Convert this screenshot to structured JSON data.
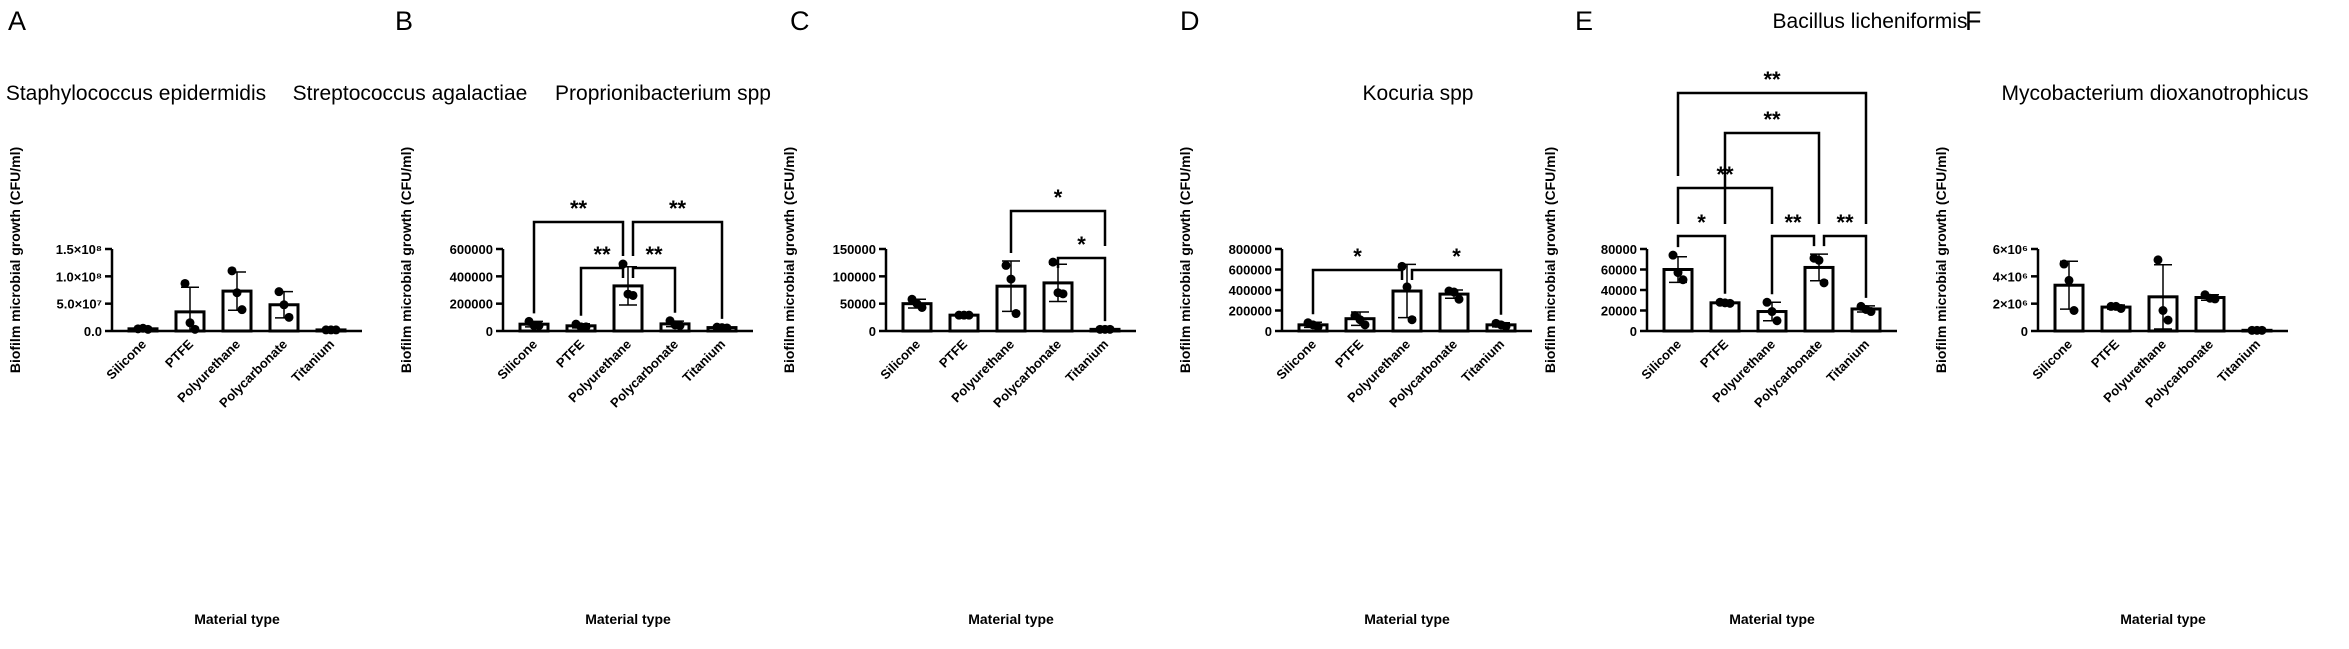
{
  "figure": {
    "colors": {
      "bar_fill": "#ffffff",
      "ink": "#000000"
    }
  },
  "chart_data": [
    {
      "panel": "A",
      "type": "bar",
      "title": "Staphylococcus epidermidis",
      "xlabel": "Material type",
      "ylabel": "Biofilm microbial growth (CFU/ml)",
      "categories": [
        "Silicone",
        "PTFE",
        "Polyurethane",
        "Polycarbonate",
        "Titanium"
      ],
      "ylim": [
        0,
        150000000
      ],
      "yticks": [
        0,
        50000000,
        100000000,
        150000000
      ],
      "ytick_labels": [
        "0.0",
        "5.0×10⁷",
        "1.0×10⁸",
        "1.5×10⁸"
      ],
      "values": [
        4000000,
        35000000,
        73000000,
        48000000,
        2000000
      ],
      "sd": [
        1000000,
        45000000,
        35000000,
        24000000,
        500000
      ],
      "points": [
        [
          4000000,
          5000000,
          3000000
        ],
        [
          87000000,
          15000000,
          3000000
        ],
        [
          110000000,
          70000000,
          39000000
        ],
        [
          72000000,
          48000000,
          25000000
        ],
        [
          2000000,
          2000000,
          2000000
        ]
      ],
      "comparisons": []
    },
    {
      "panel": "B",
      "type": "bar",
      "title": "Streptococcus agalactiae",
      "xlabel": "Material type",
      "ylabel": "Biofilm microbial growth (CFU/ml)",
      "categories": [
        "Silicone",
        "PTFE",
        "Polyurethane",
        "Polycarbonate",
        "Titanium"
      ],
      "ylim": [
        0,
        600000
      ],
      "yticks": [
        0,
        200000,
        400000,
        600000
      ],
      "ytick_labels": [
        "0",
        "200000",
        "400000",
        "600000"
      ],
      "values": [
        50000,
        38000,
        330000,
        52000,
        25000
      ],
      "sd": [
        20000,
        15000,
        140000,
        20000,
        5000
      ],
      "points": [
        [
          70000,
          40000,
          40000
        ],
        [
          50000,
          30000,
          30000
        ],
        [
          490000,
          270000,
          260000
        ],
        [
          75000,
          45000,
          40000
        ],
        [
          28000,
          25000,
          22000
        ]
      ],
      "comparisons": [
        {
          "a": "Silicone",
          "b": "Polyurethane",
          "label": "**"
        },
        {
          "a": "Polyurethane",
          "b": "Titanium",
          "label": "**"
        },
        {
          "a": "PTFE",
          "b": "Polyurethane",
          "label": "**"
        },
        {
          "a": "Polyurethane",
          "b": "Polycarbonate",
          "label": "**"
        }
      ]
    },
    {
      "panel": "C",
      "type": "bar",
      "title": "Proprionibacterium spp",
      "xlabel": "Material type",
      "ylabel": "Biofilm microbial growth (CFU/ml)",
      "categories": [
        "Silicone",
        "PTFE",
        "Polyurethane",
        "Polycarbonate",
        "Titanium"
      ],
      "ylim": [
        0,
        150000
      ],
      "yticks": [
        0,
        50000,
        100000,
        150000
      ],
      "ytick_labels": [
        "0",
        "50000",
        "100000",
        "150000"
      ],
      "values": [
        50000,
        29000,
        82000,
        88000,
        3000
      ],
      "sd": [
        8000,
        1000,
        46000,
        34000,
        500
      ],
      "points": [
        [
          58000,
          50000,
          43000
        ],
        [
          29000,
          29000,
          29000
        ],
        [
          120000,
          95000,
          32000
        ],
        [
          126000,
          70000,
          68000
        ],
        [
          3000,
          3000,
          3000
        ]
      ],
      "comparisons": [
        {
          "a": "Polyurethane",
          "b": "Titanium",
          "label": "*"
        },
        {
          "a": "Polycarbonate",
          "b": "Titanium",
          "label": "*"
        }
      ]
    },
    {
      "panel": "D",
      "type": "bar",
      "title": "Kocuria spp",
      "xlabel": "Material type",
      "ylabel": "Biofilm microbial growth (CFU/ml)",
      "categories": [
        "Silicone",
        "PTFE",
        "Polyurethane",
        "Polycarbonate",
        "Titanium"
      ],
      "ylim": [
        0,
        800000
      ],
      "yticks": [
        0,
        200000,
        400000,
        600000,
        800000
      ],
      "ytick_labels": [
        "0",
        "200000",
        "400000",
        "600000",
        "800000"
      ],
      "values": [
        60000,
        120000,
        390000,
        360000,
        60000
      ],
      "sd": [
        25000,
        65000,
        260000,
        40000,
        20000
      ],
      "points": [
        [
          80000,
          60000,
          40000
        ],
        [
          150000,
          110000,
          60000
        ],
        [
          630000,
          430000,
          110000
        ],
        [
          390000,
          380000,
          310000
        ],
        [
          75000,
          60000,
          45000
        ]
      ],
      "comparisons": [
        {
          "a": "Silicone",
          "b": "Polyurethane",
          "label": "*"
        },
        {
          "a": "Polyurethane",
          "b": "Titanium",
          "label": "*"
        }
      ]
    },
    {
      "panel": "E",
      "type": "bar",
      "title": "Bacillus licheniformis",
      "xlabel": "Material type",
      "ylabel": "Biofilm microbial growth (CFU/ml)",
      "categories": [
        "Silicone",
        "PTFE",
        "Polyurethane",
        "Polycarbonate",
        "Titanium"
      ],
      "ylim": [
        0,
        80000
      ],
      "yticks": [
        0,
        20000,
        40000,
        60000,
        80000
      ],
      "ytick_labels": [
        "0",
        "20000",
        "40000",
        "60000",
        "80000"
      ],
      "values": [
        60000,
        27500,
        19000,
        62000,
        21500
      ],
      "sd": [
        12500,
        1000,
        9000,
        13000,
        3000
      ],
      "points": [
        [
          74000,
          57000,
          50000
        ],
        [
          28000,
          27500,
          27000
        ],
        [
          28000,
          19000,
          10000
        ],
        [
          71000,
          69000,
          47000
        ],
        [
          24000,
          21000,
          19000
        ]
      ],
      "comparisons": [
        {
          "a": "Silicone",
          "b": "Titanium",
          "label": "**"
        },
        {
          "a": "PTFE",
          "b": "Polycarbonate",
          "label": "**"
        },
        {
          "a": "Silicone",
          "b": "Polyurethane",
          "label": "**"
        },
        {
          "a": "Silicone",
          "b": "PTFE",
          "label": "*"
        },
        {
          "a": "Polyurethane",
          "b": "Polycarbonate",
          "label": "**"
        },
        {
          "a": "Polycarbonate",
          "b": "Titanium",
          "label": "**"
        }
      ]
    },
    {
      "panel": "F",
      "type": "bar",
      "title": "Mycobacterium dioxanotrophicus",
      "xlabel": "Material type",
      "ylabel": "Biofilm microbial growth (CFU/ml)",
      "categories": [
        "Silicone",
        "PTFE",
        "Polyurethane",
        "Polycarbonate",
        "Titanium"
      ],
      "ylim": [
        0,
        6000000
      ],
      "yticks": [
        0,
        2000000,
        4000000,
        6000000
      ],
      "ytick_labels": [
        "0",
        "2×10⁶",
        "4×10⁶",
        "6×10⁶"
      ],
      "values": [
        3350000,
        1750000,
        2500000,
        2450000,
        50000
      ],
      "sd": [
        1750000,
        150000,
        2350000,
        200000,
        10000
      ],
      "points": [
        [
          4900000,
          3700000,
          1500000
        ],
        [
          1800000,
          1800000,
          1650000
        ],
        [
          5200000,
          1500000,
          800000
        ],
        [
          2650000,
          2400000,
          2350000
        ],
        [
          50000,
          50000,
          50000
        ]
      ],
      "comparisons": []
    }
  ]
}
